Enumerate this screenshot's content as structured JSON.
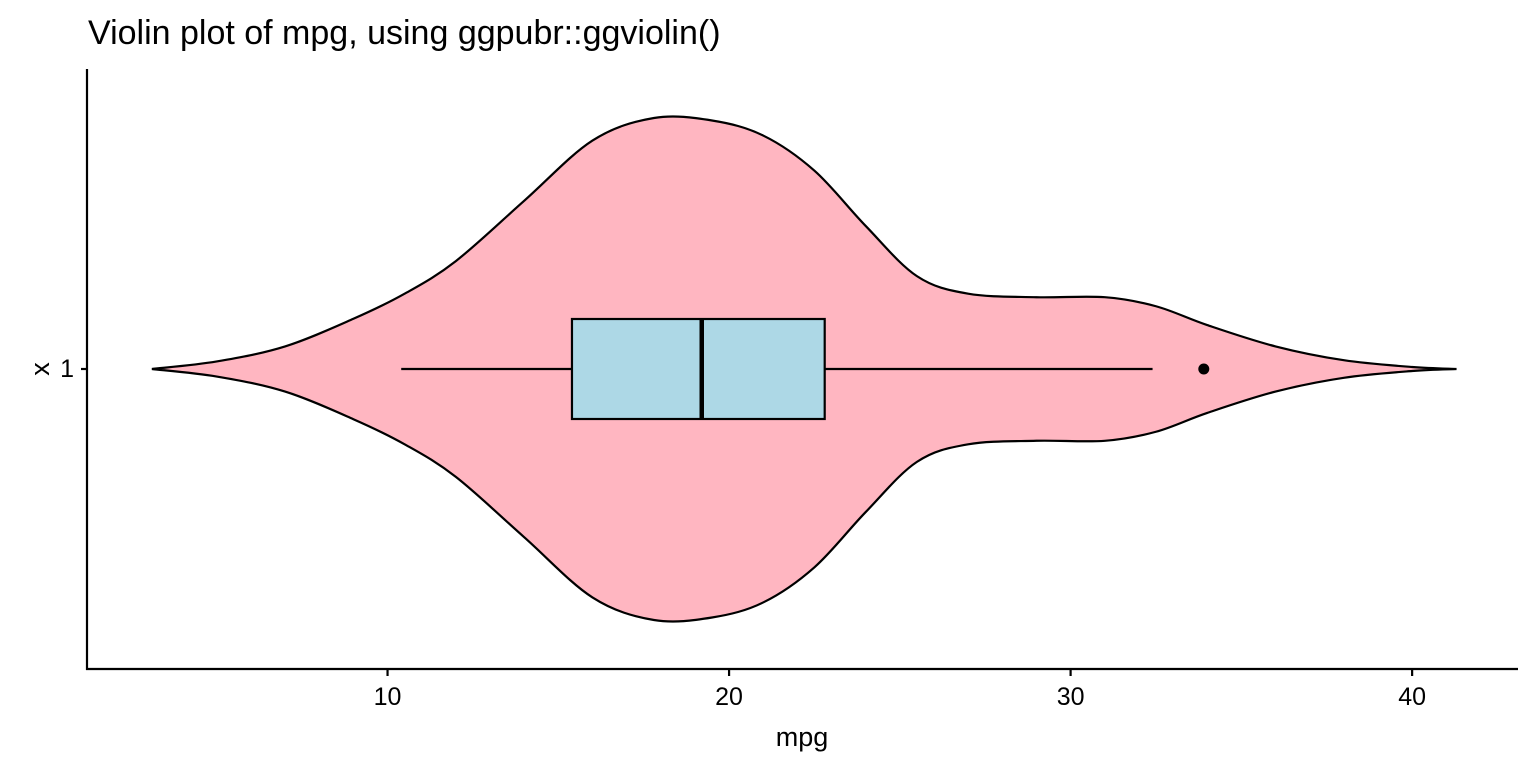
{
  "chart_data": {
    "type": "violin",
    "title": "Violin plot of mpg, using ggpubr::ggviolin()",
    "xlabel": "mpg",
    "ylabel": "x",
    "orientation": "horizontal",
    "category": "1",
    "xlim": [
      1.2,
      43.1
    ],
    "xticks": [
      10,
      20,
      30,
      40
    ],
    "xtick_labels": [
      "10",
      "20",
      "30",
      "40"
    ],
    "violin": {
      "fill": "#FFB6C1",
      "outline": "#000000",
      "range": [
        3.1,
        41.3
      ],
      "density_profile": [
        [
          3.1,
          0.0
        ],
        [
          5.0,
          0.03
        ],
        [
          7.0,
          0.09
        ],
        [
          9.0,
          0.2
        ],
        [
          10.5,
          0.3
        ],
        [
          12.0,
          0.43
        ],
        [
          14.0,
          0.67
        ],
        [
          16.0,
          0.91
        ],
        [
          17.8,
          1.0
        ],
        [
          19.5,
          0.99
        ],
        [
          21.0,
          0.93
        ],
        [
          22.5,
          0.79
        ],
        [
          24.0,
          0.57
        ],
        [
          25.5,
          0.37
        ],
        [
          27.0,
          0.3
        ],
        [
          29.0,
          0.286
        ],
        [
          31.0,
          0.286
        ],
        [
          32.5,
          0.25
        ],
        [
          34.0,
          0.175
        ],
        [
          36.0,
          0.09
        ],
        [
          38.0,
          0.035
        ],
        [
          40.0,
          0.008
        ],
        [
          41.3,
          0.0
        ]
      ]
    },
    "boxplot": {
      "fill": "#ADD8E6",
      "outline": "#000000",
      "min": 10.4,
      "q1": 15.4,
      "median": 19.2,
      "q3": 22.8,
      "max": 32.4,
      "outliers": [
        33.9
      ]
    },
    "grid": false,
    "legend": "none"
  }
}
